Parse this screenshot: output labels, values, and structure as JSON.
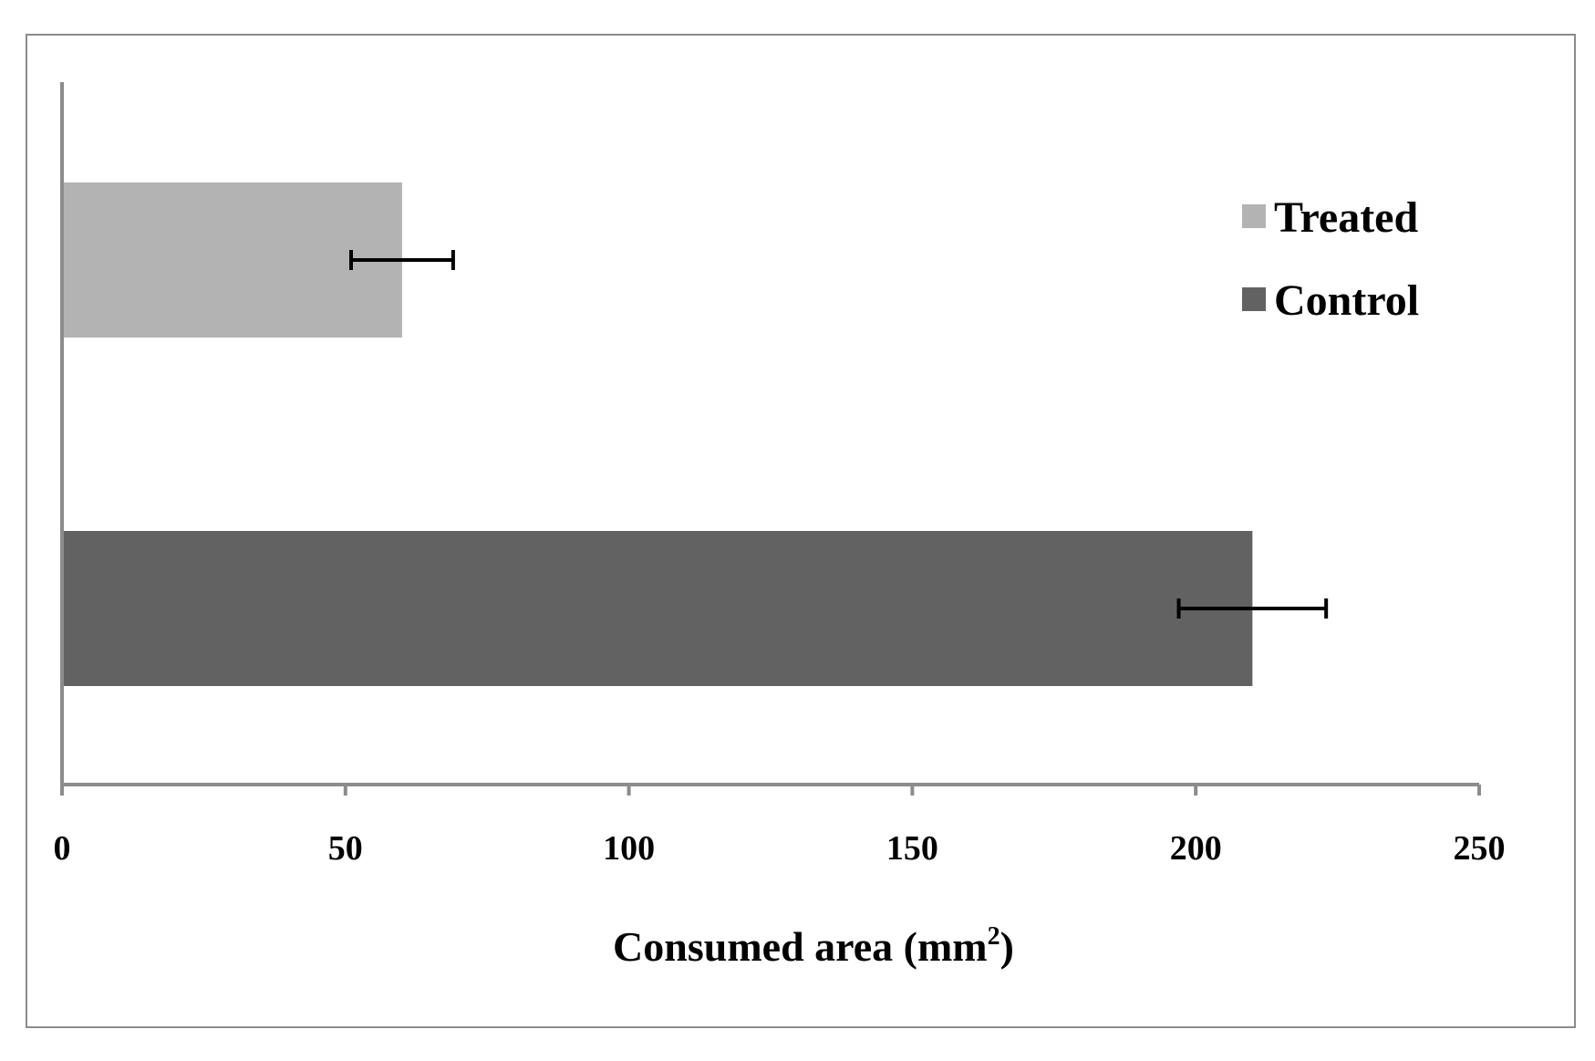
{
  "chart_data": {
    "type": "bar",
    "orientation": "horizontal",
    "title": "",
    "xlabel": "Consumed area (mm²)",
    "xlabel_main": "Consumed area (mm",
    "xlabel_sup": "2",
    "xlabel_close": ")",
    "ylabel": "",
    "xlim": [
      0,
      250
    ],
    "x_ticks": [
      "0",
      "50",
      "100",
      "150",
      "200",
      "250"
    ],
    "x_tick_values": [
      0,
      50,
      100,
      150,
      200,
      250
    ],
    "grid": false,
    "legend_position": "top-right",
    "series": [
      {
        "name": "Treated",
        "value": 60,
        "error": 9,
        "color": "#b3b3b3"
      },
      {
        "name": "Control",
        "value": 210,
        "error": 13,
        "color": "#626262"
      }
    ]
  }
}
